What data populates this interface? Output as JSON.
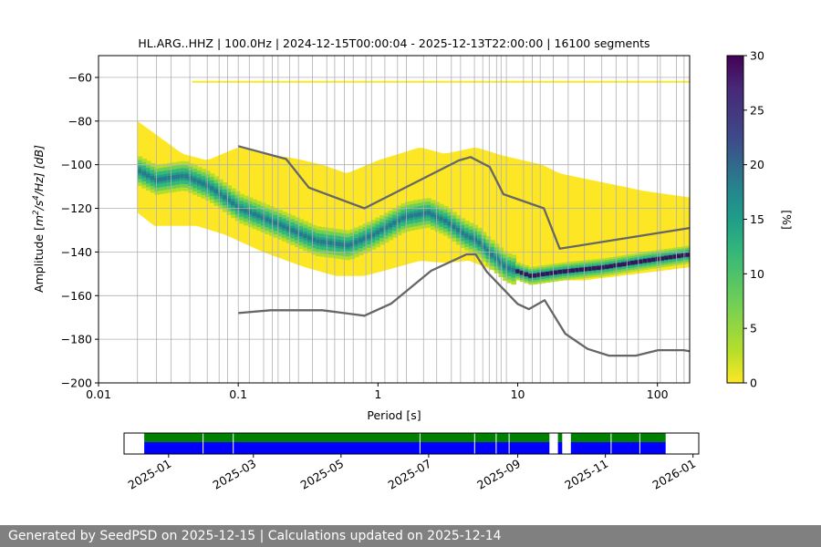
{
  "chart_data": [
    {
      "type": "heatmap",
      "title": "HL.ARG..HHZ | 100.0Hz | 2024-12-15T00:00:04 - 2025-12-13T22:00:00 | 16100 segments",
      "xlabel": "Period [s]",
      "ylabel_parts": {
        "prefix": "Amplitude [",
        "m": "m",
        "exp1": "2",
        "mid": "/s",
        "exp2": "4",
        "suffix": "/Hz] [dB]"
      },
      "x_scale": "log",
      "xlim": [
        0.01,
        170
      ],
      "ylim": [
        -200,
        -50
      ],
      "x_ticks": [
        {
          "value": 0.01,
          "label": "0.01"
        },
        {
          "value": 0.1,
          "label": "0.1"
        },
        {
          "value": 1,
          "label": "1"
        },
        {
          "value": 10,
          "label": "10"
        },
        {
          "value": 100,
          "label": "100"
        }
      ],
      "y_ticks": [
        {
          "value": -60,
          "label": "−60"
        },
        {
          "value": -80,
          "label": "−80"
        },
        {
          "value": -100,
          "label": "−100"
        },
        {
          "value": -120,
          "label": "−120"
        },
        {
          "value": -140,
          "label": "−140"
        },
        {
          "value": -160,
          "label": "−160"
        },
        {
          "value": -180,
          "label": "−180"
        },
        {
          "value": -200,
          "label": "−200"
        }
      ],
      "grid": true,
      "colormap": "viridis_r",
      "colorbar": {
        "label": "[%]",
        "range": [
          0,
          30
        ],
        "ticks": [
          {
            "value": 0,
            "label": "0"
          },
          {
            "value": 5,
            "label": "5"
          },
          {
            "value": 10,
            "label": "10"
          },
          {
            "value": 15,
            "label": "15"
          },
          {
            "value": 20,
            "label": "20"
          },
          {
            "value": 25,
            "label": "25"
          },
          {
            "value": 30,
            "label": "30"
          }
        ]
      },
      "density_extent_x": [
        0.019,
        170
      ],
      "mode_curve": [
        [
          0.019,
          -103
        ],
        [
          0.025,
          -107
        ],
        [
          0.04,
          -105
        ],
        [
          0.06,
          -110
        ],
        [
          0.1,
          -120
        ],
        [
          0.2,
          -128
        ],
        [
          0.35,
          -135
        ],
        [
          0.6,
          -137
        ],
        [
          0.9,
          -132
        ],
        [
          1.5,
          -124
        ],
        [
          2.2,
          -122
        ],
        [
          3,
          -126
        ],
        [
          4,
          -132
        ],
        [
          5,
          -135
        ],
        [
          6,
          -140
        ],
        [
          8,
          -147
        ],
        [
          12,
          -151
        ],
        [
          20,
          -149
        ],
        [
          40,
          -147
        ],
        [
          80,
          -144
        ],
        [
          170,
          -141
        ]
      ],
      "lower_envelope": [
        [
          0.019,
          -122
        ],
        [
          0.025,
          -128
        ],
        [
          0.05,
          -128
        ],
        [
          0.08,
          -132
        ],
        [
          0.15,
          -140
        ],
        [
          0.3,
          -147
        ],
        [
          0.5,
          -151
        ],
        [
          0.8,
          -151
        ],
        [
          1.2,
          -148
        ],
        [
          2,
          -144
        ],
        [
          3,
          -145
        ],
        [
          4.5,
          -144
        ],
        [
          7,
          -149
        ],
        [
          12,
          -153
        ],
        [
          30,
          -153
        ],
        [
          170,
          -147
        ]
      ],
      "upper_envelope": [
        [
          0.019,
          -80
        ],
        [
          0.04,
          -95
        ],
        [
          0.06,
          -98
        ],
        [
          0.1,
          -92
        ],
        [
          0.15,
          -95
        ],
        [
          0.25,
          -97
        ],
        [
          0.4,
          -100
        ],
        [
          0.6,
          -104
        ],
        [
          1,
          -98
        ],
        [
          2,
          -92
        ],
        [
          3,
          -95
        ],
        [
          5,
          -92
        ],
        [
          8,
          -96
        ],
        [
          15,
          -100
        ],
        [
          20,
          -104
        ],
        [
          40,
          -108
        ],
        [
          80,
          -112
        ],
        [
          170,
          -115
        ]
      ],
      "spike_level": -62,
      "noise_models": {
        "upper": [
          [
            0.1,
            -91.5
          ],
          [
            0.22,
            -97.4
          ],
          [
            0.32,
            -110.5
          ],
          [
            0.8,
            -120
          ],
          [
            3.8,
            -98
          ],
          [
            4.6,
            -96.5
          ],
          [
            6.3,
            -101
          ],
          [
            7.9,
            -113.5
          ],
          [
            15.4,
            -120
          ],
          [
            20,
            -138.5
          ],
          [
            170,
            -129
          ]
        ],
        "lower": [
          [
            0.1,
            -168
          ],
          [
            0.17,
            -166.7
          ],
          [
            0.4,
            -166.7
          ],
          [
            0.8,
            -169.2
          ],
          [
            1.24,
            -163.7
          ],
          [
            2.4,
            -148.6
          ],
          [
            4.3,
            -141.1
          ],
          [
            5,
            -141.1
          ],
          [
            6,
            -149
          ],
          [
            10,
            -163.8
          ],
          [
            12,
            -166.2
          ],
          [
            15.6,
            -162.1
          ],
          [
            21.9,
            -177.5
          ],
          [
            31.6,
            -184.4
          ],
          [
            45,
            -187.5
          ],
          [
            70,
            -187.5
          ],
          [
            101,
            -185
          ],
          [
            154,
            -185
          ],
          [
            170,
            -185.5
          ]
        ]
      },
      "data_period_gridlines": [
        0.019,
        0.026,
        0.033,
        0.045,
        0.06,
        0.073,
        0.084,
        0.1,
        0.12,
        0.152,
        0.175,
        0.193,
        0.233,
        0.27,
        0.34,
        0.43,
        0.49,
        0.575,
        0.665,
        0.82,
        0.9,
        1.12,
        1.38,
        1.6,
        2.12,
        2.63,
        3.35,
        3.9,
        4.9,
        5.62,
        6.25,
        7.05,
        7.6,
        8.3,
        11,
        12.7,
        14.5,
        18,
        23,
        30,
        40,
        50.5,
        60.7,
        73,
        100,
        105,
        137,
        155
      ]
    },
    {
      "type": "timeline",
      "x_type": "date",
      "xlim": [
        "2024-12-01",
        "2026-01-05"
      ],
      "x_ticks": [
        {
          "value": "2025-01-01",
          "label": "2025-01"
        },
        {
          "value": "2025-03-01",
          "label": "2025-03"
        },
        {
          "value": "2025-05-01",
          "label": "2025-05"
        },
        {
          "value": "2025-07-01",
          "label": "2025-07"
        },
        {
          "value": "2025-09-01",
          "label": "2025-09"
        },
        {
          "value": "2025-11-01",
          "label": "2025-11"
        },
        {
          "value": "2026-01-01",
          "label": "2026-01"
        }
      ],
      "colors": {
        "available": "#008000",
        "used": "#0000ff",
        "break": "#ffffff"
      },
      "available_segments": [
        [
          "2024-12-15",
          "2025-09-23"
        ],
        [
          "2025-09-29",
          "2025-10-02"
        ],
        [
          "2025-10-08",
          "2025-12-13"
        ]
      ],
      "used_segments": [
        [
          "2024-12-15",
          "2025-09-23"
        ],
        [
          "2025-09-29",
          "2025-10-02"
        ],
        [
          "2025-10-08",
          "2025-12-13"
        ]
      ],
      "break_dates": [
        "2025-01-25",
        "2025-02-15",
        "2025-06-25",
        "2025-08-02",
        "2025-08-17",
        "2025-08-26",
        "2025-09-25",
        "2025-11-05",
        "2025-11-25"
      ]
    }
  ],
  "footer": {
    "text": "Generated by SeedPSD on 2025-12-15 | Calculations updated on 2025-12-14"
  }
}
